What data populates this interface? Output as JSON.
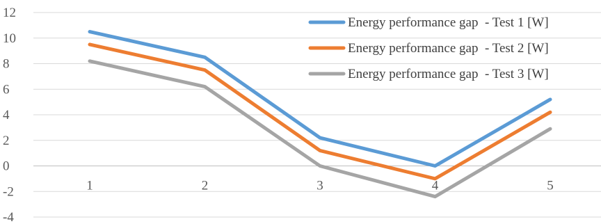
{
  "chart_data": {
    "type": "line",
    "title": "",
    "xlabel": "",
    "ylabel": "",
    "categories": [
      "1",
      "2",
      "3",
      "4",
      "5"
    ],
    "ylim": [
      -4,
      12
    ],
    "yticks": [
      12,
      10,
      8,
      6,
      4,
      2,
      0,
      -2,
      -4
    ],
    "grid": true,
    "legend_position": "top-right",
    "series": [
      {
        "name": "Energy performance gap  - Test 1 [W]",
        "color": "#5b9bd5",
        "values": [
          10.5,
          8.5,
          2.2,
          0.0,
          5.2
        ]
      },
      {
        "name": "Energy performance gap  - Test 2 [W]",
        "color": "#ed7d31",
        "values": [
          9.5,
          7.5,
          1.2,
          -1.0,
          4.2
        ]
      },
      {
        "name": "Energy performance gap  - Test 3 [W]",
        "color": "#a5a5a5",
        "values": [
          8.2,
          6.2,
          0.0,
          -2.4,
          2.9
        ]
      }
    ]
  }
}
